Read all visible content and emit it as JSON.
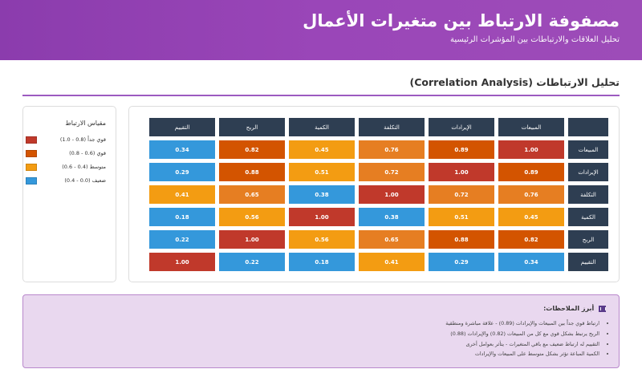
{
  "header": {
    "title": "مصفوفة الارتباط بين متغيرات الأعمال",
    "subtitle": "تحليل العلاقات والارتباطات بين المؤشرات الرئيسية"
  },
  "section_title": "تحليل الارتباطات (Correlation Analysis)",
  "matrix": {
    "columns": [
      "المبيعات",
      "الإيرادات",
      "التكلفة",
      "الكمية",
      "الربح",
      "التقييم"
    ],
    "rows": [
      {
        "label": "المبيعات",
        "values": [
          "1.00",
          "0.89",
          "0.76",
          "0.45",
          "0.82",
          "0.34"
        ]
      },
      {
        "label": "الإيرادات",
        "values": [
          "0.89",
          "1.00",
          "0.72",
          "0.51",
          "0.88",
          "0.29"
        ]
      },
      {
        "label": "التكلفة",
        "values": [
          "0.76",
          "0.72",
          "1.00",
          "0.38",
          "0.65",
          "0.41"
        ]
      },
      {
        "label": "الكمية",
        "values": [
          "0.45",
          "0.51",
          "0.38",
          "1.00",
          "0.56",
          "0.18"
        ]
      },
      {
        "label": "الربح",
        "values": [
          "0.82",
          "0.88",
          "0.65",
          "0.56",
          "1.00",
          "0.22"
        ]
      },
      {
        "label": "التقييم",
        "values": [
          "0.34",
          "0.29",
          "0.41",
          "0.18",
          "0.22",
          "1.00"
        ]
      }
    ]
  },
  "colors": {
    "very_strong": "#c0392b",
    "strong": "#d35400",
    "medium_orange": "#e67e22",
    "medium": "#f39c12",
    "weak": "#3498db",
    "header": "#2e3e52"
  },
  "legend": {
    "title": "مقياس الارتباط",
    "items": [
      {
        "label": "قوي جداً (0.8 - 1.0)",
        "color": "#c0392b"
      },
      {
        "label": "قوي (0.6 - 0.8)",
        "color": "#d35400"
      },
      {
        "label": "متوسط (0.4 - 0.6)",
        "color": "#f39c12"
      },
      {
        "label": "ضعيف (0.0 - 0.4)",
        "color": "#3498db"
      }
    ]
  },
  "notes": {
    "title": "أبرز الملاحظات:",
    "icon": "chart-icon",
    "items": [
      "ارتباط قوي جداً بين المبيعات والإيرادات (0.89) - علاقة مباشرة ومنطقية",
      "الربح يرتبط بشكل قوي مع كل من المبيعات (0.82) والإيرادات (0.88)",
      "التقييم له ارتباط ضعيف مع باقي المتغيرات - يتأثر بعوامل أخرى",
      "الكمية المباعة تؤثر بشكل متوسط على المبيعات والإيرادات"
    ]
  }
}
